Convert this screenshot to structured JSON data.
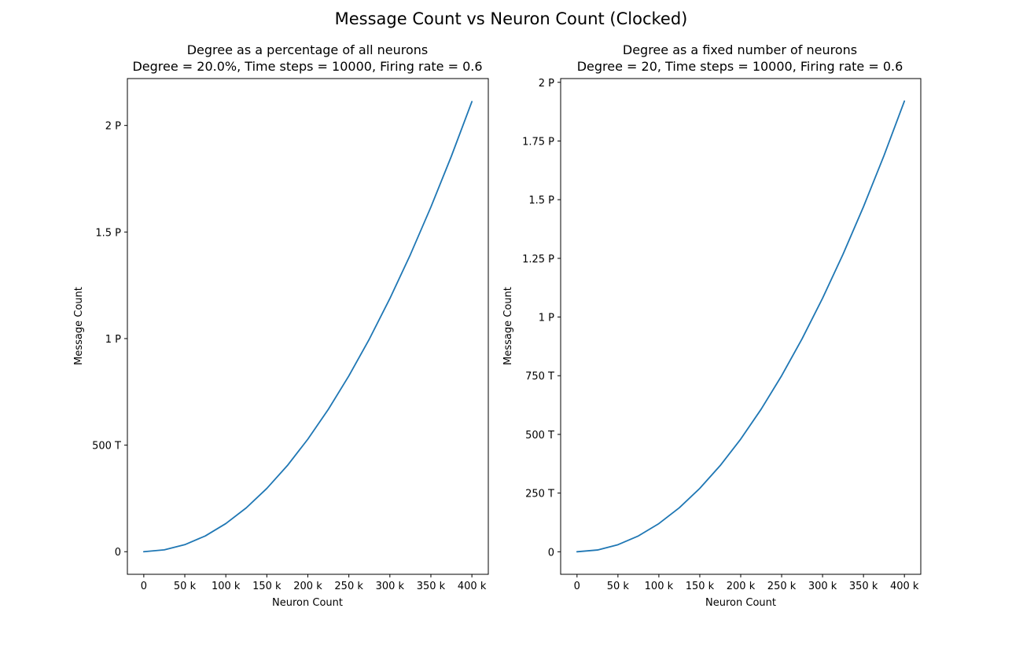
{
  "figure": {
    "title": "Message Count vs Neuron Count (Clocked)"
  },
  "chart_data": [
    {
      "type": "line",
      "title": "Degree as a percentage of all neurons",
      "subtitle": "Degree = 20.0%, Time steps = 10000, Firing rate = 0.6",
      "xlabel": "Neuron Count",
      "ylabel": "Message Count",
      "xlim": [
        -20000,
        420000
      ],
      "ylim": [
        -106000000000000.0,
        2220000000000000.0
      ],
      "grid": false,
      "color": "#1f77b4",
      "x_ticks": [
        {
          "value": 0,
          "label": "0"
        },
        {
          "value": 50000,
          "label": "50 k"
        },
        {
          "value": 100000,
          "label": "100 k"
        },
        {
          "value": 150000,
          "label": "150 k"
        },
        {
          "value": 200000,
          "label": "200 k"
        },
        {
          "value": 250000,
          "label": "250 k"
        },
        {
          "value": 300000,
          "label": "300 k"
        },
        {
          "value": 350000,
          "label": "350 k"
        },
        {
          "value": 400000,
          "label": "400 k"
        }
      ],
      "y_ticks": [
        {
          "value": 0,
          "label": "0"
        },
        {
          "value": 500000000000000.0,
          "label": "500 T"
        },
        {
          "value": 1000000000000000.0,
          "label": "1 P"
        },
        {
          "value": 1500000000000000.0,
          "label": "1.5 P"
        },
        {
          "value": 2000000000000000.0,
          "label": "2 P"
        }
      ],
      "series": [
        {
          "x": [
            0,
            25000,
            50000,
            75000,
            100000,
            125000,
            150000,
            175000,
            200000,
            225000,
            250000,
            275000,
            300000,
            325000,
            350000,
            375000,
            400000
          ],
          "y": [
            0,
            8600000000000.0,
            33000000000000.0,
            74000000000000.0,
            132000000000000.0,
            206000000000000.0,
            297000000000000.0,
            404000000000000.0,
            528000000000000.0,
            668000000000000.0,
            825000000000000.0,
            998000000000000.0,
            1188000000000000.0,
            1394000000000000.0,
            1617000000000000.0,
            1856000000000000.0,
            2112000000000000.0
          ]
        }
      ]
    },
    {
      "type": "line",
      "title": "Degree as a fixed number of neurons",
      "subtitle": "Degree = 20, Time steps = 10000, Firing rate = 0.6",
      "xlabel": "Neuron Count",
      "ylabel": "Message Count",
      "xlim": [
        -20000,
        420000
      ],
      "ylim": [
        -96000000000000.0,
        2016000000000000.0
      ],
      "grid": false,
      "color": "#1f77b4",
      "x_ticks": [
        {
          "value": 0,
          "label": "0"
        },
        {
          "value": 50000,
          "label": "50 k"
        },
        {
          "value": 100000,
          "label": "100 k"
        },
        {
          "value": 150000,
          "label": "150 k"
        },
        {
          "value": 200000,
          "label": "200 k"
        },
        {
          "value": 250000,
          "label": "250 k"
        },
        {
          "value": 300000,
          "label": "300 k"
        },
        {
          "value": 350000,
          "label": "350 k"
        },
        {
          "value": 400000,
          "label": "400 k"
        }
      ],
      "y_ticks": [
        {
          "value": 0,
          "label": "0"
        },
        {
          "value": 250000000000000.0,
          "label": "250 T"
        },
        {
          "value": 500000000000000.0,
          "label": "500 T"
        },
        {
          "value": 750000000000000.0,
          "label": "750 T"
        },
        {
          "value": 1000000000000000.0,
          "label": "1 P"
        },
        {
          "value": 1250000000000000.0,
          "label": "1.25 P"
        },
        {
          "value": 1500000000000000.0,
          "label": "1.5 P"
        },
        {
          "value": 1750000000000000.0,
          "label": "1.75 P"
        },
        {
          "value": 2000000000000000.0,
          "label": "2 P"
        }
      ],
      "series": [
        {
          "x": [
            0,
            25000,
            50000,
            75000,
            100000,
            125000,
            150000,
            175000,
            200000,
            225000,
            250000,
            275000,
            300000,
            325000,
            350000,
            375000,
            400000
          ],
          "y": [
            0,
            7500000000000.0,
            30000000000000.0,
            67500000000000.0,
            120000000000000.0,
            187500000000000.0,
            270000000000000.0,
            367500000000000.0,
            480000000000000.0,
            607500000000000.0,
            750000000000000.0,
            907500000000000.0,
            1080000000000000.0,
            1267500000000000.0,
            1470000000000000.0,
            1687500000000000.0,
            1920000000000000.0
          ]
        }
      ]
    }
  ]
}
